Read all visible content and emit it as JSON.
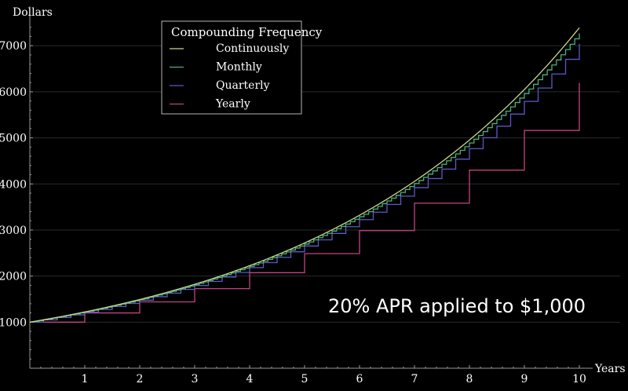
{
  "chart_data": {
    "type": "line",
    "xlabel": "Years",
    "ylabel": "Dollars",
    "xlim": [
      0,
      10
    ],
    "ylim": [
      0,
      7600
    ],
    "xticks": [
      1,
      2,
      3,
      4,
      5,
      6,
      7,
      8,
      9,
      10
    ],
    "yticks": [
      1000,
      2000,
      3000,
      4000,
      5000,
      6000,
      7000
    ],
    "grid": "horizontal",
    "legend_title": "Compounding Frequency",
    "legend_position": "top-left",
    "annotation": "20% APR applied to $1,000",
    "principal": 1000,
    "rate": 0.2,
    "series": [
      {
        "name": "Continuously",
        "color": "#c8d98a",
        "compounding": "continuous",
        "values": [
          1000,
          1221,
          1492,
          1822,
          2226,
          2718,
          3320,
          4055,
          4953,
          6050,
          7389
        ]
      },
      {
        "name": "Monthly",
        "color": "#4fae7e",
        "compounding": "monthly",
        "periods_per_year": 12,
        "values": [
          1000,
          1219,
          1487,
          1813,
          2211,
          2696,
          3288,
          4009,
          4889,
          5962,
          7271
        ]
      },
      {
        "name": "Quarterly",
        "color": "#5c58c8",
        "compounding": "quarterly",
        "periods_per_year": 4,
        "values": [
          1000,
          1216,
          1477,
          1796,
          2183,
          2653,
          3225,
          3920,
          4765,
          5792,
          7040
        ]
      },
      {
        "name": "Yearly",
        "color": "#c2457e",
        "compounding": "yearly",
        "periods_per_year": 1,
        "values": [
          1000,
          1200,
          1440,
          1728,
          2074,
          2488,
          2986,
          3583,
          4300,
          5160,
          6192
        ]
      }
    ]
  }
}
